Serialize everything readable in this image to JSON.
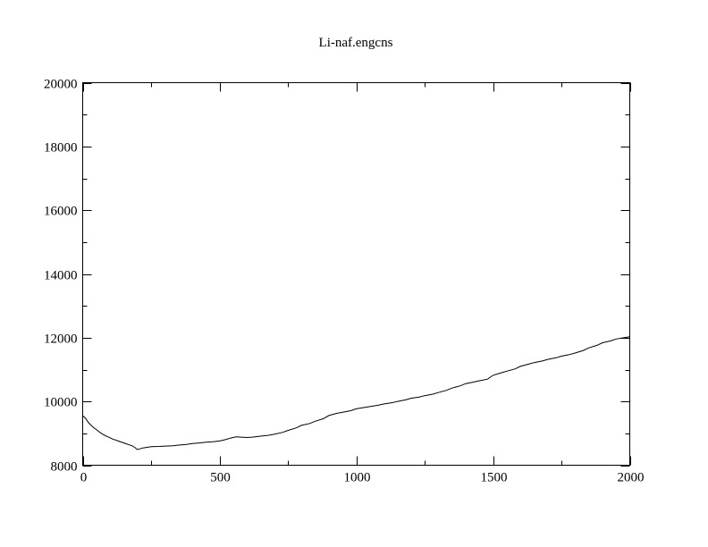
{
  "chart_data": {
    "type": "line",
    "title": "Li-naf.engcns",
    "xlabel": "",
    "ylabel": "",
    "xlim": [
      0,
      2000
    ],
    "ylim": [
      8000,
      20000
    ],
    "x_ticks": [
      0,
      500,
      1000,
      1500,
      2000
    ],
    "y_ticks": [
      8000,
      10000,
      12000,
      14000,
      16000,
      18000,
      20000
    ],
    "x_minor_step": 250,
    "y_minor_step": 1000,
    "grid": false,
    "legend": "none",
    "line_color": "#000000",
    "series": [
      {
        "x": [
          0,
          10,
          20,
          30,
          40,
          50,
          60,
          70,
          80,
          90,
          100,
          110,
          120,
          130,
          140,
          150,
          160,
          170,
          180,
          190,
          200,
          220,
          250,
          280,
          300,
          330,
          350,
          380,
          400,
          430,
          450,
          480,
          500,
          520,
          540,
          560,
          580,
          600,
          620,
          650,
          680,
          700,
          730,
          750,
          780,
          800,
          830,
          850,
          880,
          900,
          930,
          950,
          980,
          1000,
          1030,
          1050,
          1080,
          1100,
          1130,
          1150,
          1180,
          1200,
          1230,
          1250,
          1280,
          1300,
          1330,
          1350,
          1380,
          1400,
          1430,
          1450,
          1480,
          1500,
          1530,
          1550,
          1580,
          1600,
          1630,
          1650,
          1680,
          1700,
          1730,
          1750,
          1780,
          1800,
          1830,
          1850,
          1880,
          1900,
          1930,
          1950,
          1980,
          2000
        ],
        "y": [
          9550,
          9480,
          9350,
          9260,
          9180,
          9120,
          9050,
          8990,
          8940,
          8900,
          8860,
          8820,
          8790,
          8760,
          8730,
          8700,
          8670,
          8640,
          8610,
          8560,
          8490,
          8540,
          8580,
          8590,
          8600,
          8610,
          8630,
          8650,
          8680,
          8700,
          8720,
          8740,
          8760,
          8800,
          8850,
          8890,
          8880,
          8870,
          8880,
          8910,
          8940,
          8970,
          9030,
          9090,
          9170,
          9250,
          9310,
          9380,
          9460,
          9560,
          9630,
          9660,
          9710,
          9770,
          9810,
          9840,
          9880,
          9920,
          9960,
          10000,
          10050,
          10100,
          10140,
          10180,
          10230,
          10280,
          10350,
          10420,
          10490,
          10560,
          10610,
          10650,
          10700,
          10820,
          10900,
          10950,
          11020,
          11100,
          11170,
          11220,
          11270,
          11320,
          11370,
          11420,
          11470,
          11520,
          11600,
          11680,
          11760,
          11840,
          11900,
          11960,
          12000,
          12030
        ]
      }
    ]
  }
}
